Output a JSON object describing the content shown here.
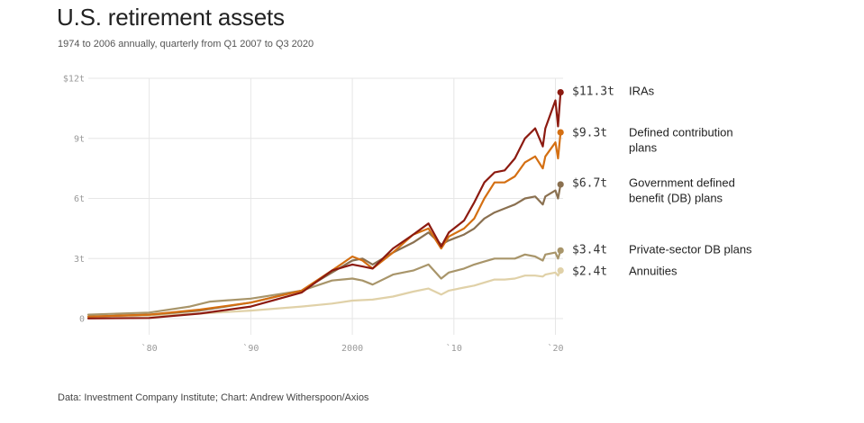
{
  "title": "U.S. retirement assets",
  "subtitle": "1974 to 2006 annually, quarterly from Q1 2007 to Q3 2020",
  "source": "Data: Investment Company Institute; Chart: Andrew Witherspoon/Axios",
  "chart_data": {
    "type": "line",
    "title": "U.S. retirement assets",
    "xlabel": "",
    "ylabel": "",
    "xlim": [
      1974,
      2020.75
    ],
    "ylim": [
      0,
      12
    ],
    "grid": true,
    "y_ticks": [
      {
        "value": 0,
        "label": "0"
      },
      {
        "value": 3,
        "label": "3t"
      },
      {
        "value": 6,
        "label": "6t"
      },
      {
        "value": 9,
        "label": "9t"
      },
      {
        "value": 12,
        "label": "$12t"
      }
    ],
    "x_ticks": [
      {
        "value": 1980,
        "label": "`80"
      },
      {
        "value": 1990,
        "label": "`90"
      },
      {
        "value": 2000,
        "label": "2000"
      },
      {
        "value": 2010,
        "label": "`10"
      },
      {
        "value": 2020,
        "label": "`20"
      }
    ],
    "series": [
      {
        "name": "Annuities",
        "end_label": "$2.4t",
        "color": "#e0d1a8",
        "x": [
          1974,
          1980,
          1985,
          1990,
          1995,
          1998,
          2000,
          2002,
          2004,
          2006,
          2007.5,
          2008.75,
          2009.5,
          2011,
          2012,
          2013,
          2014,
          2015,
          2016,
          2017,
          2018,
          2018.75,
          2019,
          2020,
          2020.25,
          2020.5
        ],
        "values": [
          0.1,
          0.15,
          0.25,
          0.4,
          0.6,
          0.75,
          0.9,
          0.95,
          1.1,
          1.35,
          1.5,
          1.2,
          1.4,
          1.55,
          1.65,
          1.8,
          1.95,
          1.95,
          2.0,
          2.15,
          2.15,
          2.1,
          2.2,
          2.3,
          2.15,
          2.4
        ]
      },
      {
        "name": "Private-sector DB plans",
        "end_label": "$3.4t",
        "color": "#a8956a",
        "x": [
          1974,
          1980,
          1984,
          1986,
          1990,
          1995,
          1998,
          2000,
          2001,
          2002,
          2004,
          2006,
          2007.5,
          2008.75,
          2009.5,
          2011,
          2012,
          2013,
          2014,
          2015,
          2016,
          2017,
          2018,
          2018.75,
          2019,
          2020,
          2020.25,
          2020.5
        ],
        "values": [
          0.2,
          0.3,
          0.6,
          0.85,
          1.0,
          1.4,
          1.9,
          2.0,
          1.9,
          1.7,
          2.2,
          2.4,
          2.7,
          2.0,
          2.3,
          2.5,
          2.7,
          2.85,
          3.0,
          3.0,
          3.0,
          3.2,
          3.1,
          2.9,
          3.2,
          3.3,
          3.0,
          3.4
        ]
      },
      {
        "name": "Government defined benefit (DB) plans",
        "end_label": "$6.7t",
        "color": "#8a7050",
        "x": [
          1974,
          1980,
          1985,
          1990,
          1995,
          1998,
          2000,
          2001,
          2002,
          2004,
          2006,
          2007.5,
          2008.75,
          2009.5,
          2011,
          2012,
          2013,
          2014,
          2015,
          2016,
          2017,
          2018,
          2018.75,
          2019,
          2020,
          2020.25,
          2020.5
        ],
        "values": [
          0.1,
          0.2,
          0.4,
          0.8,
          1.4,
          2.3,
          2.9,
          3.0,
          2.7,
          3.3,
          3.8,
          4.3,
          3.7,
          3.9,
          4.2,
          4.5,
          5.0,
          5.3,
          5.5,
          5.7,
          6.0,
          6.1,
          5.7,
          6.1,
          6.4,
          6.0,
          6.7
        ]
      },
      {
        "name": "Defined contribution plans",
        "end_label": "$9.3t",
        "color": "#d46f12",
        "x": [
          1974,
          1980,
          1985,
          1990,
          1995,
          1998,
          2000,
          2001,
          2002,
          2004,
          2006,
          2007.5,
          2008.75,
          2009.5,
          2011,
          2012,
          2013,
          2014,
          2015,
          2016,
          2017,
          2018,
          2018.75,
          2019,
          2020,
          2020.25,
          2020.5
        ],
        "values": [
          0.1,
          0.2,
          0.45,
          0.8,
          1.4,
          2.4,
          3.1,
          2.9,
          2.5,
          3.3,
          4.2,
          4.5,
          3.5,
          4.1,
          4.5,
          5.0,
          6.0,
          6.8,
          6.8,
          7.1,
          7.8,
          8.1,
          7.5,
          8.1,
          8.8,
          8.0,
          9.3
        ]
      },
      {
        "name": "IRAs",
        "end_label": "$11.3t",
        "color": "#8c1a10",
        "x": [
          1974,
          1980,
          1985,
          1990,
          1995,
          1998,
          2000,
          2001,
          2002,
          2004,
          2006,
          2007.5,
          2008.75,
          2009.5,
          2011,
          2012,
          2013,
          2014,
          2015,
          2016,
          2017,
          2018,
          2018.75,
          2019,
          2020,
          2020.25,
          2020.5
        ],
        "values": [
          0.01,
          0.03,
          0.25,
          0.6,
          1.3,
          2.4,
          2.7,
          2.6,
          2.5,
          3.5,
          4.2,
          4.75,
          3.6,
          4.3,
          4.9,
          5.8,
          6.8,
          7.3,
          7.4,
          8.0,
          9.0,
          9.5,
          8.6,
          9.5,
          10.9,
          9.6,
          11.3
        ]
      }
    ]
  }
}
